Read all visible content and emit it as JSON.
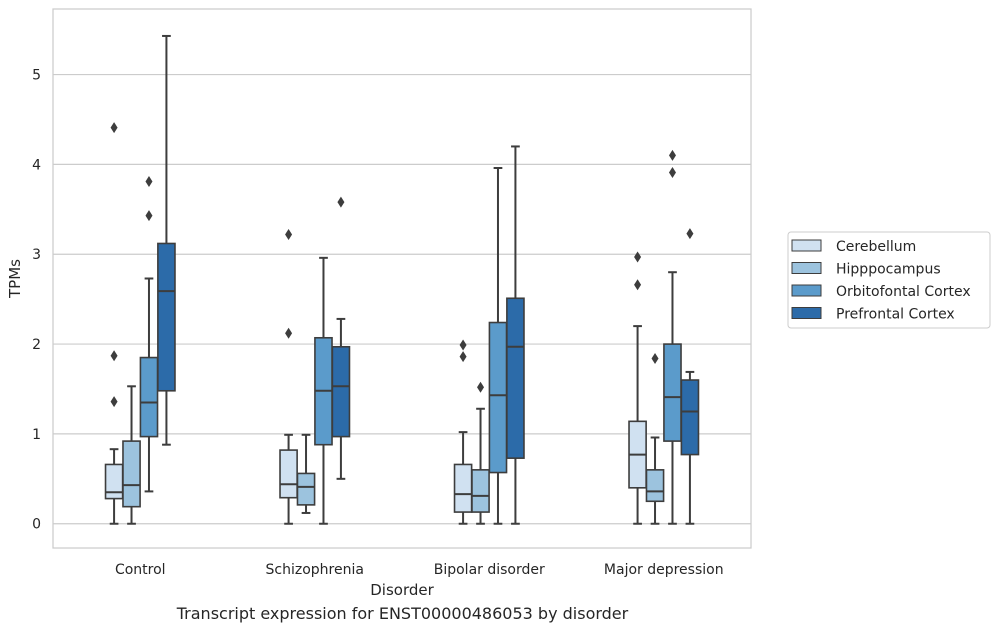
{
  "caption": "Transcript expression for ENST00000486053 by disorder",
  "chart_data": {
    "type": "boxplot",
    "title": "",
    "xlabel": "Disorder",
    "ylabel": "TPMs",
    "ylim": [
      -0.27,
      5.73
    ],
    "yticks": [
      0,
      1,
      2,
      3,
      4,
      5
    ],
    "grid": "horizontal",
    "legend_position": "right",
    "categories": [
      "Control",
      "Schizophrenia",
      "Bipolar disorder",
      "Major depression"
    ],
    "series": [
      {
        "name": "Cerebellum",
        "color": "#d0e1f1",
        "boxes": [
          {
            "whislo": 0,
            "q1": 0.28,
            "med": 0.35,
            "q3": 0.66,
            "whishi": 0.83,
            "fliers": [
              1.36,
              1.87,
              4.41
            ]
          },
          {
            "whislo": 0,
            "q1": 0.29,
            "med": 0.44,
            "q3": 0.82,
            "whishi": 0.99,
            "fliers": [
              2.12,
              3.22
            ]
          },
          {
            "whislo": 0,
            "q1": 0.13,
            "med": 0.33,
            "q3": 0.66,
            "whishi": 1.02,
            "fliers": [
              1.86,
              1.99
            ]
          },
          {
            "whislo": 0,
            "q1": 0.4,
            "med": 0.77,
            "q3": 1.14,
            "whishi": 2.2,
            "fliers": [
              2.66,
              2.97
            ]
          }
        ]
      },
      {
        "name": "Hipppocampus",
        "color": "#9cc3de",
        "boxes": [
          {
            "whislo": 0,
            "q1": 0.19,
            "med": 0.43,
            "q3": 0.92,
            "whishi": 1.53,
            "fliers": []
          },
          {
            "whislo": 0.12,
            "q1": 0.21,
            "med": 0.41,
            "q3": 0.56,
            "whishi": 0.99,
            "fliers": []
          },
          {
            "whislo": 0,
            "q1": 0.13,
            "med": 0.31,
            "q3": 0.6,
            "whishi": 1.28,
            "fliers": [
              1.52
            ]
          },
          {
            "whislo": 0,
            "q1": 0.25,
            "med": 0.36,
            "q3": 0.6,
            "whishi": 0.96,
            "fliers": [
              1.84
            ]
          }
        ]
      },
      {
        "name": "Orbitofontal Cortex",
        "color": "#5b9bcb",
        "boxes": [
          {
            "whislo": 0.36,
            "q1": 0.97,
            "med": 1.35,
            "q3": 1.85,
            "whishi": 2.73,
            "fliers": [
              3.43,
              3.81
            ]
          },
          {
            "whislo": 0,
            "q1": 0.88,
            "med": 1.48,
            "q3": 2.07,
            "whishi": 2.96,
            "fliers": []
          },
          {
            "whislo": 0,
            "q1": 0.57,
            "med": 1.43,
            "q3": 2.24,
            "whishi": 3.96,
            "fliers": []
          },
          {
            "whislo": 0,
            "q1": 0.92,
            "med": 1.41,
            "q3": 2.0,
            "whishi": 2.8,
            "fliers": [
              3.91,
              4.1
            ]
          }
        ]
      },
      {
        "name": "Prefrontal Cortex",
        "color": "#2c6ba9",
        "boxes": [
          {
            "whislo": 0.88,
            "q1": 1.48,
            "med": 2.59,
            "q3": 3.12,
            "whishi": 5.43,
            "fliers": []
          },
          {
            "whislo": 0.5,
            "q1": 0.97,
            "med": 1.53,
            "q3": 1.97,
            "whishi": 2.28,
            "fliers": [
              3.58
            ]
          },
          {
            "whislo": 0,
            "q1": 0.73,
            "med": 1.97,
            "q3": 2.51,
            "whishi": 4.2,
            "fliers": []
          },
          {
            "whislo": 0,
            "q1": 0.77,
            "med": 1.25,
            "q3": 1.6,
            "whishi": 1.69,
            "fliers": [
              3.23
            ]
          }
        ]
      }
    ]
  }
}
